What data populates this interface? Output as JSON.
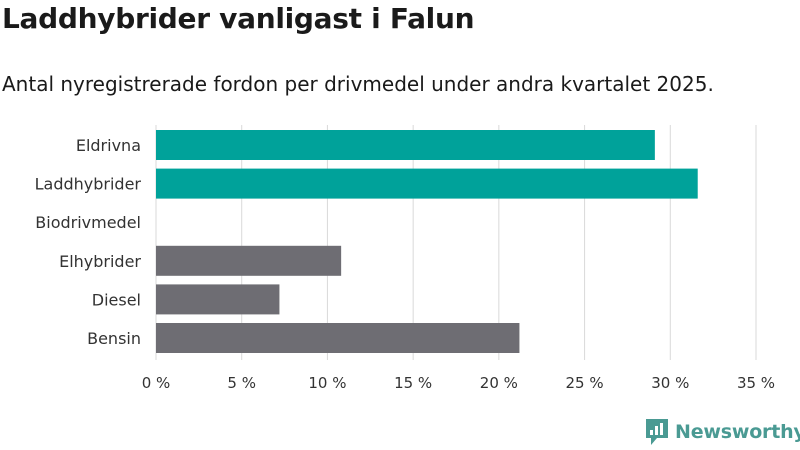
{
  "title": "Laddhybrider vanligast i Falun",
  "subtitle": "Antal nyregistrerade fordon per drivmedel under andra kvartalet 2025.",
  "brand": {
    "name": "Newsworthy",
    "icon": "newsworthy-logo-icon",
    "color": "#4a9a93"
  },
  "colors": {
    "highlight": "#00a29a",
    "default": "#6e6d73",
    "grid": "#d9d9d9"
  },
  "chart_data": {
    "type": "bar",
    "orientation": "horizontal",
    "categories": [
      "Eldrivna",
      "Laddhybrider",
      "Biodrivmedel",
      "Elhybrider",
      "Diesel",
      "Bensin"
    ],
    "values": [
      29.1,
      31.6,
      0,
      10.8,
      7.2,
      21.2
    ],
    "highlighted": [
      true,
      true,
      false,
      false,
      false,
      false
    ],
    "xticks": [
      0,
      5,
      10,
      15,
      20,
      25,
      30,
      35
    ],
    "xtick_labels": [
      "0 %",
      "5 %",
      "10 %",
      "15 %",
      "20 %",
      "25 %",
      "30 %",
      "35 %"
    ],
    "xlim": [
      0,
      35
    ],
    "xlabel": "",
    "ylabel": "",
    "grid": true
  }
}
